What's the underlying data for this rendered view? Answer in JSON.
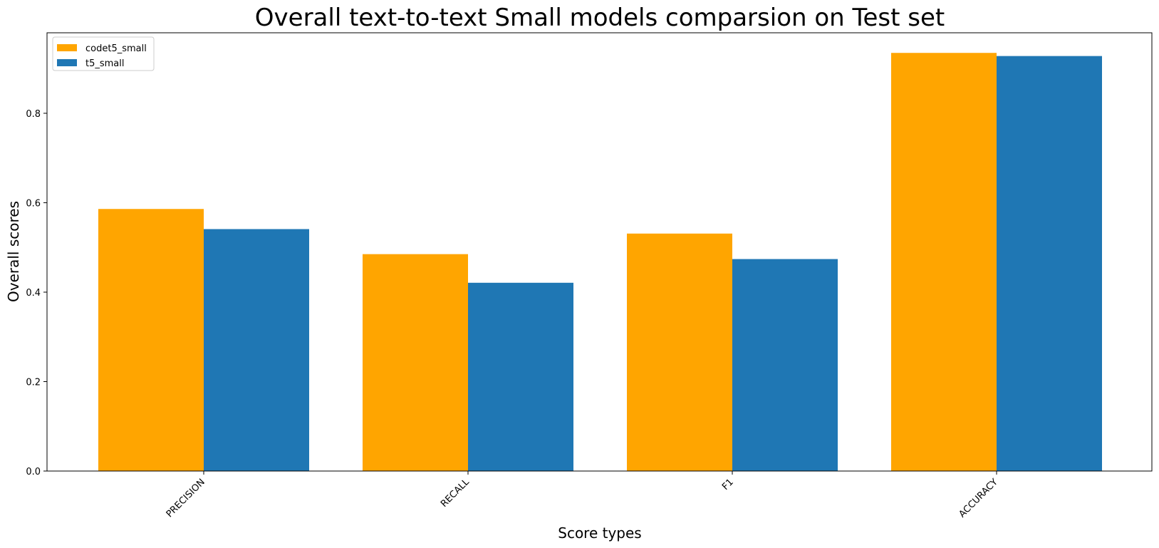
{
  "chart_data": {
    "type": "bar",
    "title": "Overall text-to-text Small models comparsion on Test set",
    "xlabel": "Score types",
    "ylabel": "Overall scores",
    "categories": [
      "PRECISION",
      "RECALL",
      "F1",
      "ACCURACY"
    ],
    "series": [
      {
        "name": "codet5_small",
        "color": "#ffa500",
        "values": [
          0.586,
          0.485,
          0.531,
          0.935
        ]
      },
      {
        "name": "t5_small",
        "color": "#1f77b4",
        "values": [
          0.541,
          0.421,
          0.474,
          0.928
        ]
      }
    ],
    "ylim": [
      0,
      0.98
    ],
    "yticks": [
      "0.0",
      "0.2",
      "0.4",
      "0.6",
      "0.8"
    ],
    "grid": false,
    "legend_position": "top-left"
  }
}
